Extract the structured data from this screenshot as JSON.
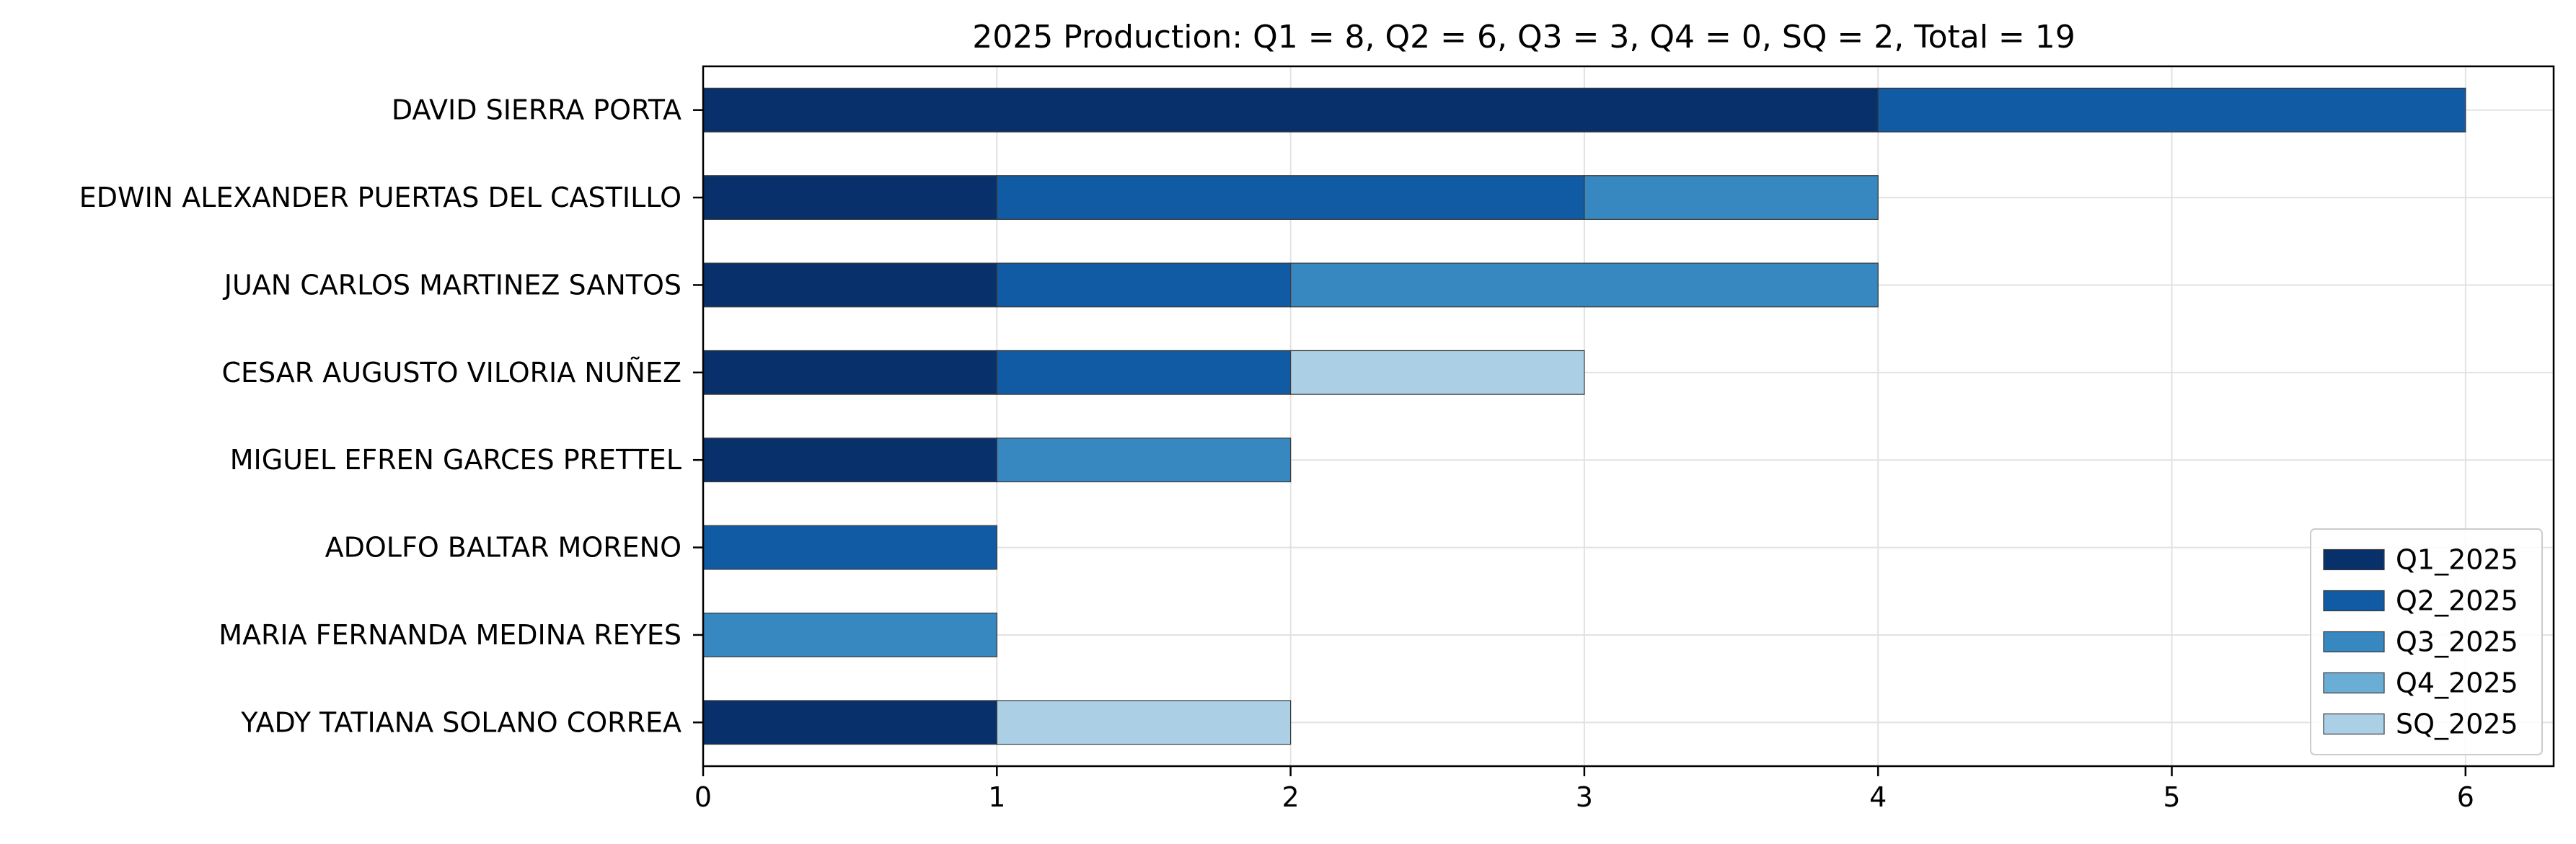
{
  "chart_data": {
    "type": "bar",
    "orientation": "horizontal",
    "stacked": true,
    "title": "2025 Production: Q1 = 8, Q2 = 6, Q3 = 3, Q4 = 0, SQ = 2, Total = 19",
    "xlabel": "",
    "ylabel": "",
    "xlim": [
      0,
      6.3
    ],
    "x_ticks": [
      0,
      1,
      2,
      3,
      4,
      5,
      6
    ],
    "grid": true,
    "legend_position": "lower right",
    "categories": [
      "DAVID SIERRA PORTA",
      "EDWIN ALEXANDER PUERTAS DEL CASTILLO",
      "JUAN CARLOS MARTINEZ SANTOS",
      "CESAR AUGUSTO VILORIA NUÑEZ ",
      "MIGUEL EFREN GARCES PRETTEL",
      "ADOLFO BALTAR MORENO",
      "MARIA FERNANDA MEDINA REYES",
      "YADY TATIANA SOLANO CORREA"
    ],
    "series": [
      {
        "name": "Q1_2025",
        "color": "#08306b",
        "values": [
          4,
          1,
          1,
          1,
          1,
          0,
          0,
          1
        ]
      },
      {
        "name": "Q2_2025",
        "color": "#105ba4",
        "values": [
          2,
          2,
          1,
          1,
          0,
          1,
          0,
          0
        ]
      },
      {
        "name": "Q3_2025",
        "color": "#3787c0",
        "values": [
          0,
          1,
          2,
          0,
          1,
          0,
          1,
          0
        ]
      },
      {
        "name": "Q4_2025",
        "color": "#6aaed6",
        "values": [
          0,
          0,
          0,
          0,
          0,
          0,
          0,
          0
        ]
      },
      {
        "name": "SQ_2025",
        "color": "#abd0e6",
        "values": [
          0,
          0,
          0,
          1,
          0,
          0,
          0,
          1
        ]
      }
    ]
  }
}
